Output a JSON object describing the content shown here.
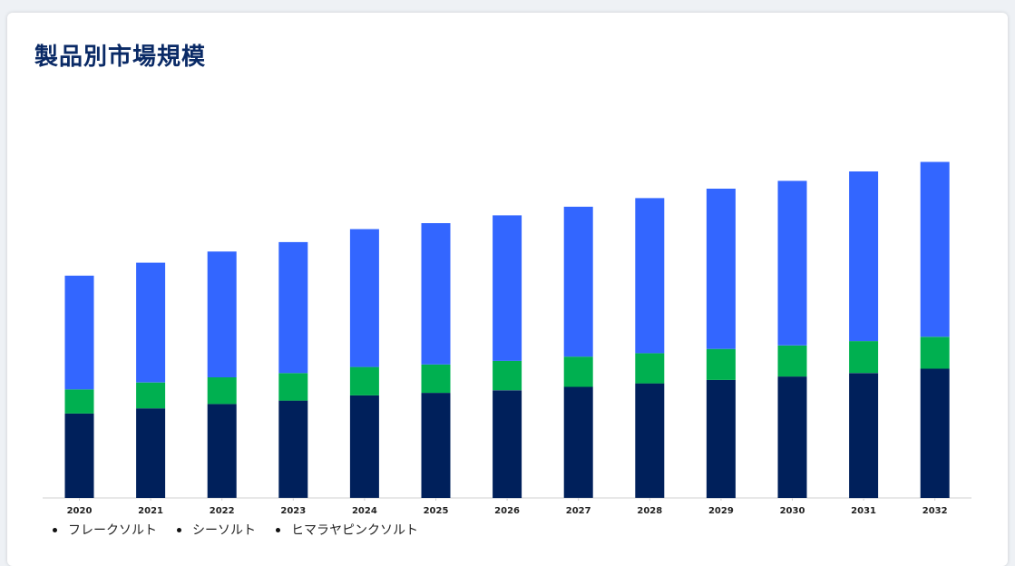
{
  "title": "製品別市場規模",
  "colors": {
    "title": "#0a2a66",
    "axis": "#d0d0d0",
    "tick_text": "#222222"
  },
  "chart_data": {
    "type": "bar",
    "stacked": true,
    "categories": [
      "2020",
      "2021",
      "2022",
      "2023",
      "2024",
      "2025",
      "2026",
      "2027",
      "2028",
      "2029",
      "2030",
      "2031",
      "2032"
    ],
    "series": [
      {
        "name": "ヒマラヤピンクソルト",
        "color": "#00205b",
        "values": [
          98,
          104,
          109,
          113,
          119,
          122,
          125,
          129,
          133,
          137,
          141,
          145,
          150
        ]
      },
      {
        "name": "シーソルト",
        "color": "#00b050",
        "values": [
          28,
          30,
          31,
          32,
          33,
          33,
          34,
          35,
          35,
          36,
          36,
          37,
          37
        ]
      },
      {
        "name": "フレークソルト",
        "color": "#3366ff",
        "values": [
          132,
          139,
          146,
          152,
          160,
          164,
          169,
          174,
          180,
          186,
          191,
          197,
          203
        ]
      }
    ],
    "legend": [
      "フレークソルト",
      "シーソルト",
      "ヒマラヤピンクソルト"
    ],
    "legend_position": "bottom-left",
    "ylim": [
      0,
      400
    ],
    "grid": false,
    "xlabel": "",
    "ylabel": ""
  }
}
